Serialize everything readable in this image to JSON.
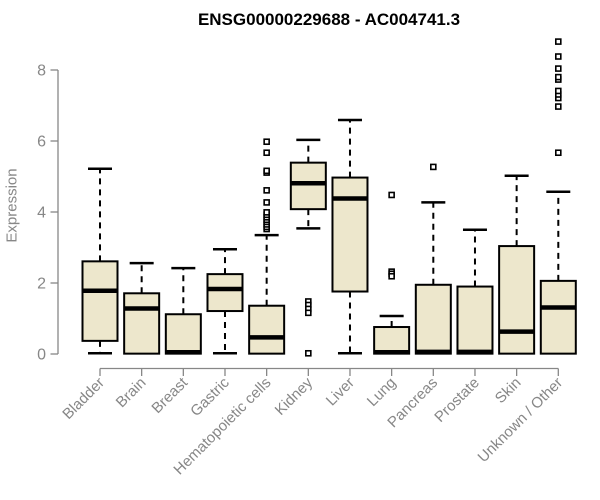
{
  "figure": {
    "title": "ENSG00000229688 - AC004741.3",
    "ylabel": "Expression"
  },
  "chart_data": {
    "type": "boxplot",
    "title": "ENSG00000229688 - AC004741.3",
    "xlabel": "",
    "ylabel": "Expression",
    "ylim": [
      0,
      8
    ],
    "yticks": [
      0,
      2,
      4,
      6,
      8
    ],
    "grid": false,
    "legend": null,
    "colors": {
      "box_fill": "#EDE7CC",
      "box_stroke": "#000000",
      "median": "#000000",
      "axis": "#878787",
      "tick_label": "#878787",
      "title": "#000000"
    },
    "categories": [
      "Bladder",
      "Brain",
      "Breast",
      "Gastric",
      "Hematopoietic cells",
      "Kidney",
      "Liver",
      "Lung",
      "Pancreas",
      "Prostate",
      "Skin",
      "Unknown / Other"
    ],
    "boxes": [
      {
        "name": "Bladder",
        "low": 0.02,
        "q1": 0.37,
        "median": 1.78,
        "q3": 2.61,
        "high": 5.22,
        "outliers": []
      },
      {
        "name": "Brain",
        "low": 0.01,
        "q1": 0.01,
        "median": 1.28,
        "q3": 1.71,
        "high": 2.56,
        "outliers": []
      },
      {
        "name": "Breast",
        "low": 0.01,
        "q1": 0.01,
        "median": 0.05,
        "q3": 1.12,
        "high": 2.42,
        "outliers": []
      },
      {
        "name": "Gastric",
        "low": 0.02,
        "q1": 1.21,
        "median": 1.83,
        "q3": 2.25,
        "high": 2.95,
        "outliers": []
      },
      {
        "name": "Hematopoietic cells",
        "low": 0.01,
        "q1": 0.01,
        "median": 0.47,
        "q3": 1.36,
        "high": 3.35,
        "outliers": [
          3.52,
          3.58,
          3.65,
          3.72,
          3.78,
          3.85,
          3.92,
          3.99,
          4.27,
          4.61,
          5.11,
          5.16,
          5.67,
          5.98
        ]
      },
      {
        "name": "Kidney",
        "low": 3.54,
        "q1": 4.08,
        "median": 4.81,
        "q3": 5.39,
        "high": 6.03,
        "outliers": [
          1.48,
          1.38,
          1.27,
          1.16,
          0.02
        ]
      },
      {
        "name": "Liver",
        "low": 0.02,
        "q1": 1.76,
        "median": 4.38,
        "q3": 4.97,
        "high": 6.59,
        "outliers": []
      },
      {
        "name": "Lung",
        "low": 0.01,
        "q1": 0.01,
        "median": 0.05,
        "q3": 0.76,
        "high": 1.07,
        "outliers": [
          4.48,
          2.32,
          2.26,
          2.19
        ]
      },
      {
        "name": "Pancreas",
        "low": 0.01,
        "q1": 0.01,
        "median": 0.06,
        "q3": 1.95,
        "high": 4.27,
        "outliers": [
          5.27
        ]
      },
      {
        "name": "Prostate",
        "low": 0.01,
        "q1": 0.01,
        "median": 0.06,
        "q3": 1.9,
        "high": 3.5,
        "outliers": []
      },
      {
        "name": "Skin",
        "low": 0.01,
        "q1": 0.01,
        "median": 0.63,
        "q3": 3.04,
        "high": 5.02,
        "outliers": []
      },
      {
        "name": "Unknown / Other",
        "low": 0.01,
        "q1": 0.01,
        "median": 1.31,
        "q3": 2.06,
        "high": 4.57,
        "outliers": [
          5.67,
          6.97,
          7.21,
          7.31,
          7.41,
          7.73,
          7.8,
          8.04,
          8.38,
          8.8
        ]
      }
    ]
  }
}
